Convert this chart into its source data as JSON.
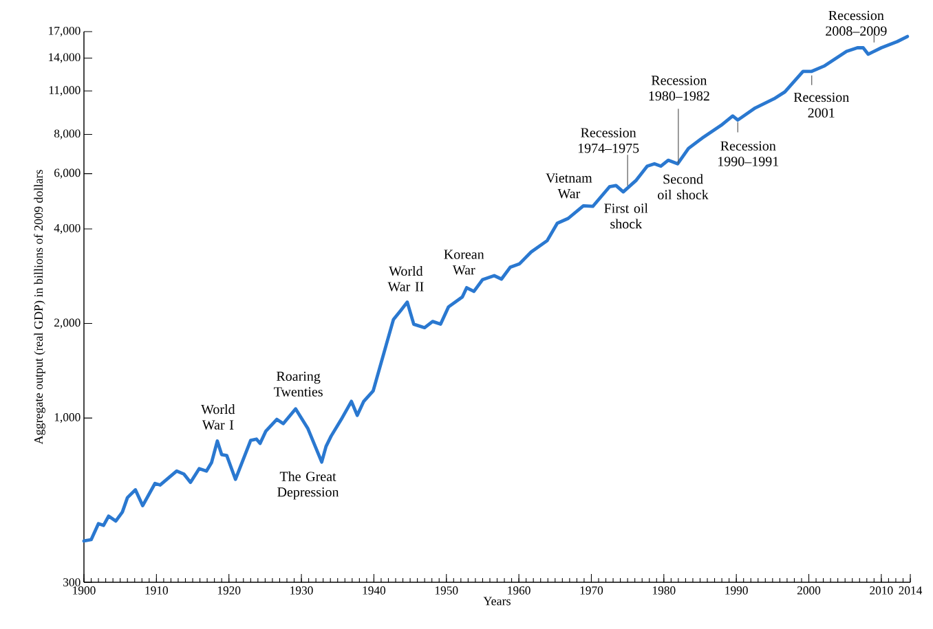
{
  "chart_data": {
    "type": "line",
    "xlabel": "Years",
    "ylabel": "Aggregate output (real GDP) in billions of 2009 dollars",
    "log": "y",
    "xlim": [
      1900,
      2014
    ],
    "ylim": [
      300,
      17000
    ],
    "xticks": [
      1900,
      1910,
      1920,
      1930,
      1940,
      1950,
      1960,
      1970,
      1980,
      1990,
      2000,
      2010,
      2014
    ],
    "yticks": [
      {
        "value": 300,
        "label": "300"
      },
      {
        "value": 1000,
        "label": "1,000"
      },
      {
        "value": 2000,
        "label": "2,000"
      },
      {
        "value": 4000,
        "label": "4,000"
      },
      {
        "value": 6000,
        "label": "6,000"
      },
      {
        "value": 8000,
        "label": "8,000"
      },
      {
        "value": 11000,
        "label": "11,000"
      },
      {
        "value": 14000,
        "label": "14,000"
      },
      {
        "value": 17000,
        "label": "17,000"
      }
    ],
    "series": [
      {
        "color": "#2a78d0",
        "x": [
          1900,
          1901,
          1902,
          1902.7,
          1903.4,
          1904.4,
          1905.3,
          1906,
          1907.1,
          1908.1,
          1909.8,
          1910.5,
          1912.8,
          1913.8,
          1914.7,
          1915.9,
          1916.9,
          1917.6,
          1918.4,
          1919,
          1919.7,
          1920.9,
          1923,
          1923.8,
          1924.3,
          1925.1,
          1926.6,
          1927.5,
          1929.2,
          1930.9,
          1932.8,
          1933.4,
          1934.1,
          1935.5,
          1936.9,
          1937.7,
          1938.6,
          1939.9,
          1941.7,
          1942.7,
          1943.7,
          1944.6,
          1945.5,
          1947,
          1948.1,
          1949.2,
          1950.3,
          1952.2,
          1952.8,
          1953.8,
          1955,
          1956.6,
          1957.6,
          1958.8,
          1960.1,
          1961.7,
          1963.9,
          1965.3,
          1966.8,
          1968.9,
          1970.2,
          1972.5,
          1973.4,
          1974.4,
          1976.2,
          1977.7,
          1978.7,
          1979.6,
          1980.6,
          1981.9,
          1983.4,
          1985.3,
          1987.9,
          1989.5,
          1990.2,
          1992.6,
          1995.2,
          1996.7,
          1999.2,
          2000.4,
          2002.1,
          2005.2,
          2006.7,
          2007.5,
          2008.2,
          2010,
          2012.2,
          2013.6
        ],
        "values": [
          406,
          410,
          461,
          455,
          487,
          470,
          502,
          558,
          591,
          526,
          619,
          612,
          678,
          663,
          624,
          690,
          678,
          721,
          845,
          765,
          760,
          638,
          849,
          857,
          830,
          909,
          990,
          960,
          1070,
          925,
          724,
          812,
          876,
          990,
          1130,
          1020,
          1130,
          1220,
          1710,
          2060,
          2200,
          2340,
          1990,
          1940,
          2030,
          1990,
          2260,
          2430,
          2600,
          2530,
          2760,
          2840,
          2770,
          3020,
          3100,
          3380,
          3670,
          4170,
          4320,
          4740,
          4720,
          5450,
          5500,
          5250,
          5720,
          6340,
          6450,
          6340,
          6620,
          6450,
          7220,
          7790,
          8550,
          9160,
          8890,
          9710,
          10390,
          10930,
          12700,
          12700,
          13200,
          14700,
          15100,
          15100,
          14400,
          15100,
          15800,
          16400
        ]
      }
    ],
    "annotations": [
      {
        "text": "World War I",
        "x": 1918.4,
        "y": 845
      },
      {
        "text": "Roaring Twenties",
        "x": 1929.2,
        "y": 1070
      },
      {
        "text": "The Great Depression",
        "x": 1932.8,
        "y": 724
      },
      {
        "text": "World War II",
        "x": 1944.6,
        "y": 2340
      },
      {
        "text": "Korean War",
        "x": 1952.8,
        "y": 2600
      },
      {
        "text": "Vietnam War",
        "x": 1968.9,
        "y": 4740
      },
      {
        "text": "Recession 1974–1975",
        "x": 1975,
        "y": 5350
      },
      {
        "text": "First oil shock",
        "x": 1974.4,
        "y": 5250
      },
      {
        "text": "Recession 1980–1982",
        "x": 1982,
        "y": 6450
      },
      {
        "text": "Second oil shock",
        "x": 1979.6,
        "y": 6340
      },
      {
        "text": "Recession 1990–1991",
        "x": 1990.2,
        "y": 8890
      },
      {
        "text": "Recession 2001",
        "x": 2000.4,
        "y": 12700
      },
      {
        "text": "Recession 2008–2009",
        "x": 2009,
        "y": 14700
      }
    ]
  }
}
